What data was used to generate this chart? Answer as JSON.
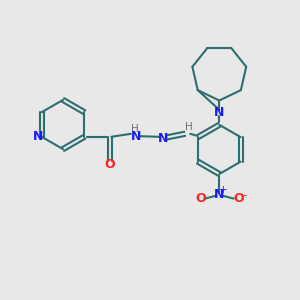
{
  "bg_color": "#e8e8e8",
  "bond_color": "#2d6e6e",
  "bond_width": 1.5,
  "atom_colors": {
    "N": "#1a1aff",
    "O": "#ff2222",
    "C": "#000000",
    "H": "#707070"
  },
  "font_size": 8.5,
  "fig_size": [
    3.0,
    3.0
  ],
  "dpi": 100
}
